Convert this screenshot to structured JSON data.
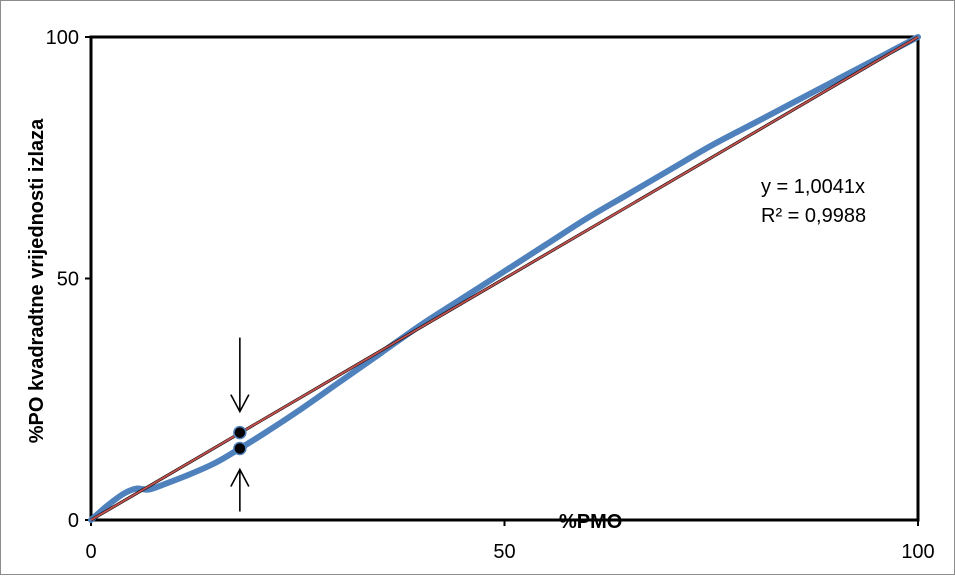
{
  "chart_data": {
    "type": "line",
    "title": "",
    "xlabel": "%PMO",
    "ylabel": "%PO kvadradtne vrijednosti izlaza",
    "xlim": [
      0,
      100
    ],
    "ylim": [
      0,
      100
    ],
    "x_ticks": [
      "0",
      "50",
      "100"
    ],
    "y_ticks": [
      "0",
      "50",
      "100"
    ],
    "grid": false,
    "legend": "none",
    "series": [
      {
        "color": "#4f81bd",
        "x": [
          0,
          2,
          4,
          5.5,
          7,
          9,
          12,
          15,
          18,
          21,
          25,
          30,
          35,
          40,
          45,
          50,
          55,
          60,
          65,
          70,
          75,
          80,
          85,
          90,
          95,
          100
        ],
        "y": [
          0,
          3,
          5.5,
          6.5,
          6.3,
          7.5,
          9.5,
          11.8,
          14.8,
          18,
          22.5,
          28.5,
          34.5,
          40.5,
          46,
          51.5,
          57,
          62.5,
          67.5,
          72.5,
          77.5,
          82,
          86.5,
          91,
          95.5,
          100
        ]
      },
      {
        "color": "#000000",
        "x": [
          0,
          100
        ],
        "y": [
          0,
          100
        ]
      }
    ],
    "trendline": {
      "color": "#c0504d",
      "slope": 1.0041,
      "x": [
        0,
        100
      ]
    },
    "trend_equation": "y = 1,0041x",
    "trend_r2": "R² = 0,9988",
    "markers": [
      {
        "x": 18,
        "y": 18.1
      },
      {
        "x": 18,
        "y": 14.8
      }
    ]
  }
}
